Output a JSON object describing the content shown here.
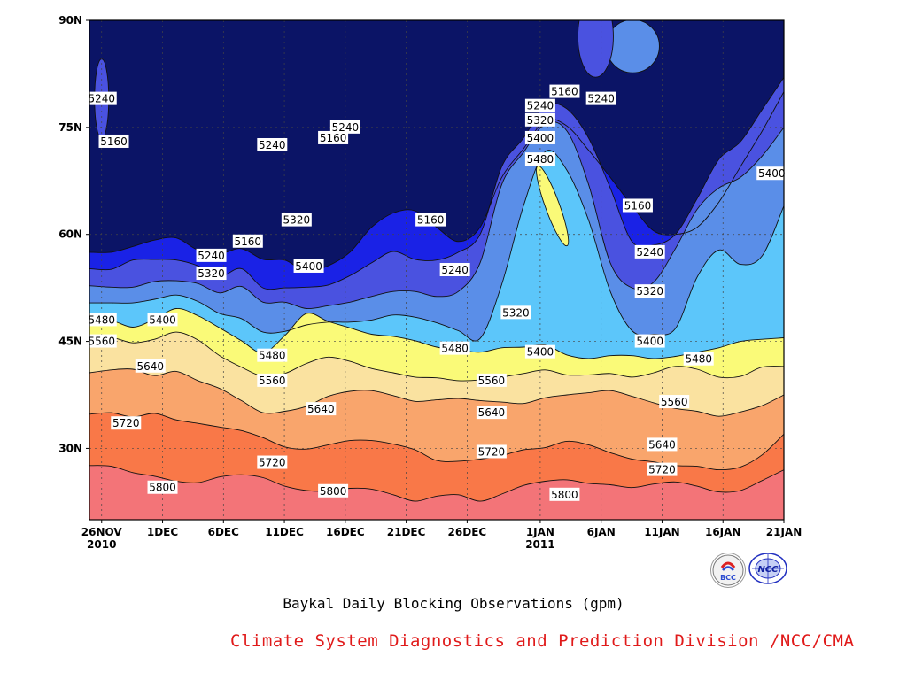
{
  "chart_data": {
    "type": "heatmap",
    "title": "Baykal Daily Blocking Observations (gpm)",
    "x_tick_labels": [
      {
        "label": "26NOV",
        "sub": "2010",
        "date": "2010-11-26"
      },
      {
        "label": "1DEC",
        "sub": "",
        "date": "2010-12-01"
      },
      {
        "label": "6DEC",
        "sub": "",
        "date": "2010-12-06"
      },
      {
        "label": "11DEC",
        "sub": "",
        "date": "2010-12-11"
      },
      {
        "label": "16DEC",
        "sub": "",
        "date": "2010-12-16"
      },
      {
        "label": "21DEC",
        "sub": "",
        "date": "2010-12-21"
      },
      {
        "label": "26DEC",
        "sub": "",
        "date": "2010-12-26"
      },
      {
        "label": "1JAN",
        "sub": "2011",
        "date": "2011-01-01"
      },
      {
        "label": "6JAN",
        "sub": "",
        "date": "2011-01-06"
      },
      {
        "label": "11JAN",
        "sub": "",
        "date": "2011-01-11"
      },
      {
        "label": "16JAN",
        "sub": "",
        "date": "2011-01-16"
      },
      {
        "label": "21JAN",
        "sub": "",
        "date": "2011-01-21"
      }
    ],
    "y_tick_labels": [
      {
        "label": "90N",
        "value": 90
      },
      {
        "label": "75N",
        "value": 75
      },
      {
        "label": "60N",
        "value": 60
      },
      {
        "label": "45N",
        "value": 45
      },
      {
        "label": "30N",
        "value": 30
      }
    ],
    "xlim": [
      "2010-11-25",
      "2011-01-21"
    ],
    "ylim": [
      20,
      90
    ],
    "grid": true,
    "contour_levels": [
      5160,
      5240,
      5320,
      5400,
      5480,
      5560,
      5640,
      5720,
      5800
    ],
    "fill_colors": [
      "#0b1466",
      "#1a22e6",
      "#4a52e0",
      "#5a8ee8",
      "#5cc6fa",
      "#fafa78",
      "#fae2a0",
      "#f9a56c",
      "#f97848",
      "#f37478"
    ],
    "bands": [
      {
        "level": 5160,
        "lat": [
          57.5,
          57.5,
          58.3,
          59.2,
          59.5,
          57.8,
          57.3,
          58.0,
          56.5,
          56.4,
          54.8,
          55.6,
          57.5,
          61.0,
          63.0,
          63.3,
          61.0,
          59.0,
          61.0,
          68.0,
          72.0,
          76.0,
          75.2,
          71.8,
          68.0,
          64.0,
          60.5,
          60.0,
          61.0,
          64.5,
          69.5,
          74.5,
          80.0
        ]
      },
      {
        "level": 5240,
        "lat": [
          55.2,
          55.1,
          56.4,
          56.5,
          56.4,
          55.6,
          54.1,
          55.2,
          52.5,
          52.5,
          52.6,
          52.9,
          54.2,
          56.0,
          57.6,
          56.5,
          56.4,
          57.5,
          60.0,
          69.5,
          73.5,
          78.0,
          77.6,
          73.5,
          66.5,
          59.0,
          58.5,
          60.0,
          65.0,
          70.5,
          73.0,
          77.5,
          82.0
        ]
      },
      {
        "level": 5320,
        "lat": [
          52.8,
          52.6,
          52.6,
          53.4,
          53.5,
          53.1,
          51.8,
          52.7,
          50.5,
          50.5,
          49.6,
          50.0,
          50.5,
          51.3,
          52.0,
          52.0,
          51.3,
          52.0,
          56.0,
          67.0,
          71.5,
          75.5,
          74.5,
          67.0,
          56.0,
          52.5,
          53.3,
          58.0,
          63.5,
          66.5,
          68.0,
          71.0,
          75.0
        ]
      },
      {
        "level": 5400,
        "lat": [
          50.4,
          50.4,
          50.4,
          50.9,
          51.5,
          50.6,
          48.9,
          48.2,
          46.3,
          46.4,
          47.3,
          47.7,
          47.7,
          48.0,
          48.7,
          48.4,
          47.6,
          46.5,
          45.4,
          53.0,
          64.0,
          71.6,
          69.0,
          62.0,
          52.0,
          46.5,
          46.0,
          46.8,
          54.0,
          57.8,
          55.8,
          57.0,
          64.0
        ]
      },
      {
        "level": 5480,
        "lat": [
          47.7,
          47.9,
          47.0,
          48.1,
          49.6,
          48.6,
          46.9,
          45.1,
          43.4,
          45.8,
          48.9,
          47.8,
          46.9,
          46.0,
          45.7,
          45.1,
          44.2,
          43.8,
          43.5,
          44.1,
          44.2,
          44.5,
          43.1,
          42.6,
          43.0,
          43.0,
          42.6,
          42.9,
          43.5,
          44.1,
          45.0,
          45.3,
          45.5
        ]
      },
      {
        "level": 5560,
        "lat": [
          44.8,
          45.5,
          44.8,
          45.3,
          46.3,
          45.2,
          43.0,
          41.4,
          40.1,
          40.5,
          41.9,
          42.8,
          42.2,
          41.2,
          40.6,
          40.0,
          39.9,
          39.5,
          39.6,
          40.0,
          40.5,
          41.0,
          40.3,
          40.3,
          40.5,
          40.0,
          40.6,
          41.5,
          41.1,
          40.0,
          40.1,
          41.4,
          41.5
        ]
      },
      {
        "level": 5640,
        "lat": [
          40.6,
          41.0,
          41.1,
          40.2,
          40.8,
          39.5,
          38.4,
          36.7,
          35.0,
          35.2,
          35.9,
          37.3,
          38.0,
          38.1,
          37.4,
          36.6,
          36.8,
          37.0,
          36.7,
          36.5,
          36.3,
          37.1,
          37.5,
          37.8,
          38.1,
          37.3,
          36.4,
          35.6,
          35.2,
          34.5,
          35.1,
          36.0,
          37.5
        ]
      },
      {
        "level": 5720,
        "lat": [
          34.8,
          35.0,
          34.4,
          34.9,
          34.0,
          33.5,
          33.0,
          32.5,
          31.5,
          30.2,
          29.9,
          30.5,
          31.1,
          31.1,
          30.6,
          29.8,
          28.3,
          28.2,
          28.5,
          29.0,
          29.8,
          30.1,
          31.0,
          30.5,
          29.4,
          28.5,
          28.1,
          27.6,
          27.5,
          27.0,
          27.4,
          29.1,
          32.0
        ]
      },
      {
        "level": 5800,
        "lat": [
          27.6,
          27.5,
          26.6,
          26.1,
          25.4,
          25.2,
          26.0,
          26.3,
          25.9,
          24.7,
          24.1,
          24.0,
          24.4,
          24.3,
          23.5,
          22.6,
          23.3,
          23.5,
          22.6,
          23.6,
          24.8,
          25.4,
          25.6,
          25.1,
          24.9,
          24.5,
          25.0,
          25.3,
          24.7,
          23.9,
          24.1,
          25.5,
          27.0
        ]
      }
    ],
    "extra_regions": [
      {
        "value": "5560+",
        "center": [
          "2011-01-02",
          64.0
        ],
        "note": "yellow blob inside 5480 closed contour"
      },
      {
        "value": "5240-5160",
        "center": [
          "2011-01-07",
          87.0
        ],
        "note": "lighter patch near pole"
      }
    ],
    "contour_labels": [
      {
        "text": "5240",
        "date": "2010-11-26",
        "lat": 79.0
      },
      {
        "text": "5160",
        "date": "2010-11-27",
        "lat": 73.0
      },
      {
        "text": "5240",
        "date": "2010-12-10",
        "lat": 72.5
      },
      {
        "text": "5160",
        "date": "2010-12-15",
        "lat": 73.5
      },
      {
        "text": "5240",
        "date": "2010-12-16",
        "lat": 75.0
      },
      {
        "text": "5160",
        "date": "2011-01-03",
        "lat": 80.0
      },
      {
        "text": "5240",
        "date": "2011-01-01",
        "lat": 78.0
      },
      {
        "text": "5320",
        "date": "2011-01-01",
        "lat": 76.0
      },
      {
        "text": "5400",
        "date": "2011-01-01",
        "lat": 73.5
      },
      {
        "text": "5480",
        "date": "2011-01-01",
        "lat": 70.5
      },
      {
        "text": "5240",
        "date": "2011-01-06",
        "lat": 79.0
      },
      {
        "text": "5160",
        "date": "2011-01-09",
        "lat": 64.0
      },
      {
        "text": "5400",
        "date": "2011-01-20",
        "lat": 68.5
      },
      {
        "text": "5160",
        "date": "2010-12-08",
        "lat": 59.0
      },
      {
        "text": "5240",
        "date": "2010-12-05",
        "lat": 57.0
      },
      {
        "text": "5320",
        "date": "2010-12-05",
        "lat": 54.5
      },
      {
        "text": "5320",
        "date": "2010-12-12",
        "lat": 62.0
      },
      {
        "text": "5160",
        "date": "2010-12-23",
        "lat": 62.0
      },
      {
        "text": "5240",
        "date": "2010-12-25",
        "lat": 55.0
      },
      {
        "text": "5400",
        "date": "2010-12-13",
        "lat": 55.5
      },
      {
        "text": "5240",
        "date": "2011-01-10",
        "lat": 57.5
      },
      {
        "text": "5320",
        "date": "2011-01-10",
        "lat": 52.0
      },
      {
        "text": "5320",
        "date": "2010-12-30",
        "lat": 49.0
      },
      {
        "text": "5480",
        "date": "2010-11-26",
        "lat": 48.0
      },
      {
        "text": "5400",
        "date": "2010-12-01",
        "lat": 48.0
      },
      {
        "text": "5560",
        "date": "2010-11-26",
        "lat": 45.0
      },
      {
        "text": "5480",
        "date": "2010-12-10",
        "lat": 43.0
      },
      {
        "text": "5400",
        "date": "2011-01-10",
        "lat": 45.0
      },
      {
        "text": "5480",
        "date": "2010-12-25",
        "lat": 44.0
      },
      {
        "text": "5400",
        "date": "2011-01-01",
        "lat": 43.5
      },
      {
        "text": "5480",
        "date": "2011-01-14",
        "lat": 42.5
      },
      {
        "text": "5640",
        "date": "2010-11-30",
        "lat": 41.5
      },
      {
        "text": "5560",
        "date": "2010-12-10",
        "lat": 39.5
      },
      {
        "text": "5560",
        "date": "2010-12-28",
        "lat": 39.5
      },
      {
        "text": "5560",
        "date": "2011-01-12",
        "lat": 36.5
      },
      {
        "text": "5640",
        "date": "2010-12-14",
        "lat": 35.5
      },
      {
        "text": "5640",
        "date": "2010-12-28",
        "lat": 35.0
      },
      {
        "text": "5640",
        "date": "2011-01-11",
        "lat": 30.5
      },
      {
        "text": "5720",
        "date": "2010-11-28",
        "lat": 33.5
      },
      {
        "text": "5720",
        "date": "2010-12-10",
        "lat": 28.0
      },
      {
        "text": "5720",
        "date": "2010-12-28",
        "lat": 29.5
      },
      {
        "text": "5720",
        "date": "2011-01-11",
        "lat": 27.0
      },
      {
        "text": "5800",
        "date": "2010-12-01",
        "lat": 24.5
      },
      {
        "text": "5800",
        "date": "2010-12-15",
        "lat": 24.0
      },
      {
        "text": "5800",
        "date": "2011-01-03",
        "lat": 23.5
      }
    ]
  },
  "caption": "Baykal Daily Blocking Observations (gpm)",
  "footer": "Climate System Diagnostics and Prediction Division /NCC/CMA",
  "logos": [
    {
      "name": "bcc-logo",
      "text": "BCC"
    },
    {
      "name": "ncc-logo",
      "text": "NCC"
    }
  ]
}
